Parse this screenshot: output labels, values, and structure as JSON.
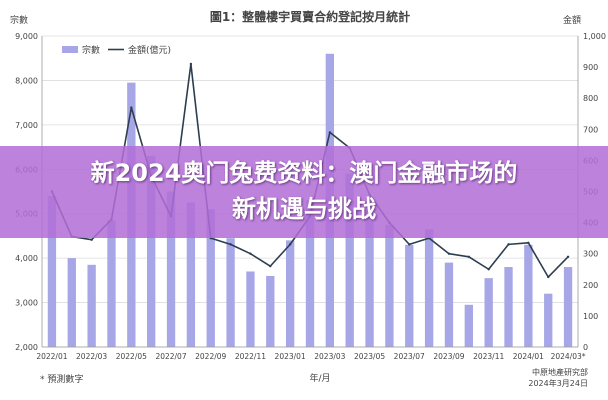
{
  "overlay": {
    "title_line1": "新2024奥门兔费资料：澳门金融市场的",
    "title_line2": "新机遇与挑战"
  },
  "chart_data": {
    "type": "bar",
    "title": "圖1：整體樓宇買賣合約登記按月統計",
    "xlabel": "年/月",
    "ylabel_left": "宗數",
    "ylabel_right": "金額",
    "legend_placement": "top-left",
    "grid": true,
    "ylim_left": [
      2000,
      9000
    ],
    "ylim_right": [
      0,
      1000
    ],
    "yticks_left": [
      "9,000",
      "8,000",
      "7,000",
      "6,000",
      "5,000",
      "4,000",
      "3,000",
      "2,000"
    ],
    "yticks_right": [
      "1,000",
      "900",
      "800",
      "700",
      "600",
      "500",
      "400",
      "300",
      "200",
      "100",
      "0"
    ],
    "xticks": [
      "2022/01",
      "2022/03",
      "2022/05",
      "2022/07",
      "2022/09",
      "2022/11",
      "2023/01",
      "2023/03",
      "2023/05",
      "2023/07",
      "2023/09",
      "2023/11",
      "2024/01",
      "2024/03*"
    ],
    "categories": [
      "2022/01",
      "2022/02",
      "2022/03",
      "2022/04",
      "2022/05",
      "2022/06",
      "2022/07",
      "2022/08",
      "2022/09",
      "2022/10",
      "2022/11",
      "2022/12",
      "2023/01",
      "2023/02",
      "2023/03",
      "2023/04",
      "2023/05",
      "2023/06",
      "2023/07",
      "2023/08",
      "2023/09",
      "2023/10",
      "2023/11",
      "2023/12",
      "2024/01",
      "2024/02",
      "2024/03*"
    ],
    "series": [
      {
        "name": "宗數",
        "type": "bar",
        "axis": "left",
        "color": "#a7a7e8",
        "values": [
          5400,
          4000,
          3850,
          4850,
          7950,
          6300,
          5500,
          5250,
          5100,
          4450,
          3700,
          3600,
          4400,
          5300,
          8600,
          5900,
          5100,
          4750,
          4300,
          4650,
          3900,
          2950,
          3550,
          3800,
          4300,
          3200,
          3800
        ]
      },
      {
        "name": "金額(億元)",
        "type": "line",
        "axis": "right",
        "color": "#2d3e50",
        "values": [
          500,
          355,
          345,
          410,
          770,
          550,
          420,
          910,
          350,
          330,
          300,
          260,
          330,
          420,
          690,
          640,
          490,
          400,
          330,
          350,
          300,
          290,
          250,
          330,
          335,
          225,
          290
        ]
      }
    ],
    "notes": {
      "footnote": "* 預測數字",
      "source": "中原地產研究部",
      "date": "2024年3月24日"
    }
  }
}
